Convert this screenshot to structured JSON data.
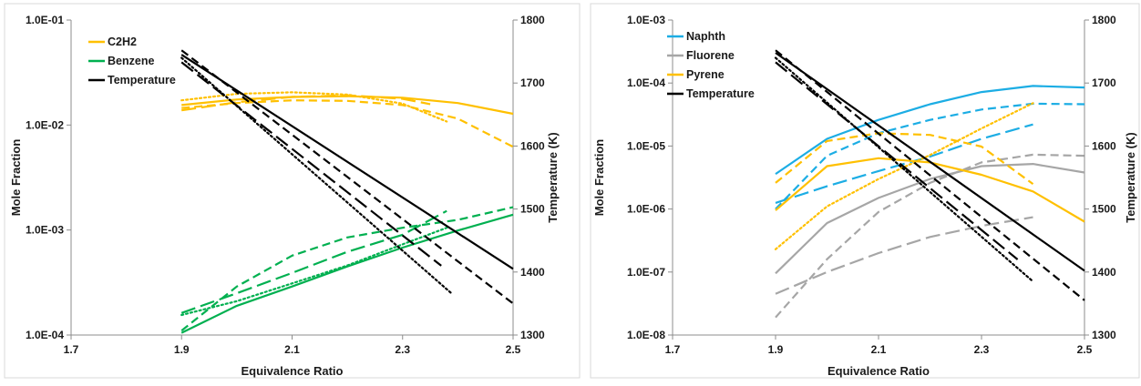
{
  "chart_data": [
    {
      "type": "line",
      "title": "",
      "xlabel": "Equivalence Ratio",
      "ylabel": "Mole Fraction",
      "y2label": "Temperature (K)",
      "xlim": [
        1.7,
        2.5
      ],
      "ylim": [
        0.0001,
        0.1
      ],
      "y2lim": [
        1300,
        1800
      ],
      "yscale": "log",
      "legend_position": "top-left",
      "x_ticks": [
        "1.7",
        "1.9",
        "2.1",
        "2.3",
        "2.5"
      ],
      "y_ticks": [
        "1.0E-04",
        "1.0E-03",
        "1.0E-02",
        "1.0E-01"
      ],
      "y_ticks_values": [
        0.0001,
        0.001,
        0.01,
        0.1
      ],
      "y2_ticks": [
        "1300",
        "1400",
        "1500",
        "1600",
        "1700",
        "1800"
      ],
      "grid": false,
      "legend": [
        {
          "label": "C2H2",
          "color": "#ffc000"
        },
        {
          "label": "Benzene",
          "color": "#00b050"
        },
        {
          "label": "Temperature",
          "color": "#000000"
        }
      ],
      "series": [
        {
          "name": "C2H2",
          "color": "#ffc000",
          "dash": "solid",
          "axis": "left",
          "x": [
            1.9,
            2.0,
            2.1,
            2.2,
            2.3,
            2.4,
            2.5
          ],
          "y": [
            0.0155,
            0.0175,
            0.0185,
            0.0188,
            0.0182,
            0.0162,
            0.0128
          ]
        },
        {
          "color": "#ffc000",
          "dash": "dash",
          "axis": "left",
          "x": [
            1.9,
            2.0,
            2.1,
            2.2,
            2.3,
            2.4,
            2.5
          ],
          "y": [
            0.0145,
            0.0162,
            0.0172,
            0.017,
            0.0155,
            0.0115,
            0.0062
          ]
        },
        {
          "color": "#ffc000",
          "dash": "longdash",
          "axis": "left",
          "x": [
            1.9,
            2.0,
            2.1,
            2.2,
            2.3,
            2.35
          ],
          "y": [
            0.0138,
            0.0165,
            0.0185,
            0.0192,
            0.0178,
            0.0158
          ]
        },
        {
          "color": "#ffc000",
          "dash": "dot",
          "axis": "left",
          "x": [
            1.9,
            2.0,
            2.1,
            2.2,
            2.3,
            2.38
          ],
          "y": [
            0.0172,
            0.0198,
            0.0205,
            0.0195,
            0.016,
            0.0108
          ]
        },
        {
          "name": "Benzene",
          "color": "#00b050",
          "dash": "solid",
          "axis": "left",
          "x": [
            1.9,
            2.0,
            2.1,
            2.2,
            2.3,
            2.4,
            2.5
          ],
          "y": [
            0.000105,
            0.00019,
            0.00029,
            0.00045,
            0.00068,
            0.00099,
            0.0014
          ]
        },
        {
          "color": "#00b050",
          "dash": "dash",
          "axis": "left",
          "x": [
            1.9,
            2.0,
            2.1,
            2.2,
            2.3,
            2.4,
            2.5
          ],
          "y": [
            0.00011,
            0.00029,
            0.00057,
            0.00085,
            0.00105,
            0.00125,
            0.00165
          ]
        },
        {
          "color": "#00b050",
          "dash": "longdash",
          "axis": "left",
          "x": [
            1.9,
            2.0,
            2.1,
            2.2,
            2.3,
            2.38
          ],
          "y": [
            0.000162,
            0.00025,
            0.00039,
            0.00062,
            0.0009,
            0.00152
          ]
        },
        {
          "color": "#00b050",
          "dash": "dot",
          "axis": "left",
          "x": [
            1.9,
            2.0,
            2.1,
            2.2,
            2.3,
            2.38
          ],
          "y": [
            0.000155,
            0.00021,
            0.00031,
            0.00046,
            0.00073,
            0.00105
          ]
        },
        {
          "name": "Temperature",
          "color": "#000000",
          "dash": "solid",
          "axis": "right",
          "x": [
            1.9,
            2.5
          ],
          "y": [
            1745,
            1405
          ]
        },
        {
          "color": "#000000",
          "dash": "dash",
          "axis": "right",
          "x": [
            1.9,
            2.5
          ],
          "y": [
            1752,
            1350
          ]
        },
        {
          "color": "#000000",
          "dash": "longdash",
          "axis": "right",
          "x": [
            1.9,
            2.37
          ],
          "y": [
            1733,
            1410
          ]
        },
        {
          "color": "#000000",
          "dash": "dot",
          "axis": "right",
          "x": [
            1.9,
            2.39
          ],
          "y": [
            1740,
            1365
          ]
        }
      ]
    },
    {
      "type": "line",
      "title": "",
      "xlabel": "Equivalence Ratio",
      "ylabel": "Mole Fraction",
      "y2label": "Temperature (K)",
      "xlim": [
        1.7,
        2.5
      ],
      "ylim": [
        1e-08,
        0.001
      ],
      "y2lim": [
        1300,
        1800
      ],
      "yscale": "log",
      "legend_position": "top-left",
      "x_ticks": [
        "1.7",
        "1.9",
        "2.1",
        "2.3",
        "2.5"
      ],
      "y_ticks": [
        "1.0E-08",
        "1.0E-07",
        "1.0E-06",
        "1.0E-05",
        "1.0E-04",
        "1.0E-03"
      ],
      "y_ticks_values": [
        1e-08,
        1e-07,
        1e-06,
        1e-05,
        0.0001,
        0.001
      ],
      "y2_ticks": [
        "1300",
        "1400",
        "1500",
        "1600",
        "1700",
        "1800"
      ],
      "grid": false,
      "legend": [
        {
          "label": "Naphth",
          "color": "#1cade4"
        },
        {
          "label": "Fluorene",
          "color": "#a6a6a6"
        },
        {
          "label": "Pyrene",
          "color": "#ffc000"
        },
        {
          "label": "Temperature",
          "color": "#000000"
        }
      ],
      "series": [
        {
          "name": "Naphth",
          "color": "#1cade4",
          "dash": "solid",
          "axis": "left",
          "x": [
            1.9,
            2.0,
            2.1,
            2.2,
            2.3,
            2.4,
            2.5
          ],
          "y": [
            3.6e-06,
            1.3e-05,
            2.6e-05,
            4.6e-05,
            7.2e-05,
            9e-05,
            8.5e-05
          ]
        },
        {
          "color": "#1cade4",
          "dash": "dash",
          "axis": "left",
          "x": [
            1.9,
            2.0,
            2.1,
            2.2,
            2.3,
            2.4,
            2.5
          ],
          "y": [
            1e-06,
            7e-06,
            1.6e-05,
            2.6e-05,
            3.8e-05,
            4.7e-05,
            4.6e-05
          ]
        },
        {
          "color": "#1cade4",
          "dash": "longdash",
          "axis": "left",
          "x": [
            1.9,
            2.0,
            2.1,
            2.2,
            2.3,
            2.4
          ],
          "y": [
            1.25e-06,
            2.3e-06,
            4e-06,
            6.8e-06,
            1.3e-05,
            2.2e-05
          ]
        },
        {
          "name": "Fluorene",
          "color": "#a6a6a6",
          "dash": "solid",
          "axis": "left",
          "x": [
            1.9,
            2.0,
            2.1,
            2.2,
            2.3,
            2.4,
            2.5
          ],
          "y": [
            9.5e-08,
            6e-07,
            1.5e-06,
            3e-06,
            4.8e-06,
            5.2e-06,
            3.8e-06
          ]
        },
        {
          "color": "#a6a6a6",
          "dash": "dash",
          "axis": "left",
          "x": [
            1.9,
            2.0,
            2.1,
            2.2,
            2.3,
            2.4,
            2.5
          ],
          "y": [
            1.9e-08,
            1.6e-07,
            9e-07,
            2.6e-06,
            5.5e-06,
            7.3e-06,
            7e-06
          ]
        },
        {
          "color": "#a6a6a6",
          "dash": "longdash",
          "axis": "left",
          "x": [
            1.9,
            2.0,
            2.1,
            2.2,
            2.3,
            2.4
          ],
          "y": [
            4.5e-08,
            1e-07,
            2e-07,
            3.6e-07,
            5.4e-07,
            7.4e-07
          ]
        },
        {
          "name": "Pyrene",
          "color": "#ffc000",
          "dash": "solid",
          "axis": "left",
          "x": [
            1.9,
            2.0,
            2.1,
            2.2,
            2.3,
            2.4,
            2.5
          ],
          "y": [
            9.5e-07,
            4.8e-06,
            6.4e-06,
            5.5e-06,
            3.5e-06,
            1.9e-06,
            6.3e-07
          ]
        },
        {
          "color": "#ffc000",
          "dash": "dash",
          "axis": "left",
          "x": [
            1.9,
            2.0,
            2.1,
            2.2,
            2.3,
            2.4
          ],
          "y": [
            2.6e-06,
            1.2e-05,
            1.6e-05,
            1.5e-05,
            9.8e-06,
            2.5e-06
          ]
        },
        {
          "color": "#ffc000",
          "dash": "dot",
          "axis": "left",
          "x": [
            1.9,
            2.0,
            2.1,
            2.2,
            2.3,
            2.4
          ],
          "y": [
            2.3e-07,
            1.1e-06,
            3e-06,
            7.2e-06,
            1.9e-05,
            4.8e-05
          ]
        },
        {
          "name": "Temperature",
          "color": "#000000",
          "dash": "solid",
          "axis": "right",
          "x": [
            1.9,
            2.5
          ],
          "y": [
            1748,
            1402
          ]
        },
        {
          "color": "#000000",
          "dash": "dash",
          "axis": "right",
          "x": [
            1.9,
            2.5
          ],
          "y": [
            1752,
            1355
          ]
        },
        {
          "color": "#000000",
          "dash": "longdash",
          "axis": "right",
          "x": [
            1.9,
            2.37
          ],
          "y": [
            1733,
            1420
          ]
        },
        {
          "color": "#000000",
          "dash": "dot",
          "axis": "right",
          "x": [
            1.9,
            2.4
          ],
          "y": [
            1740,
            1385
          ]
        }
      ]
    }
  ]
}
